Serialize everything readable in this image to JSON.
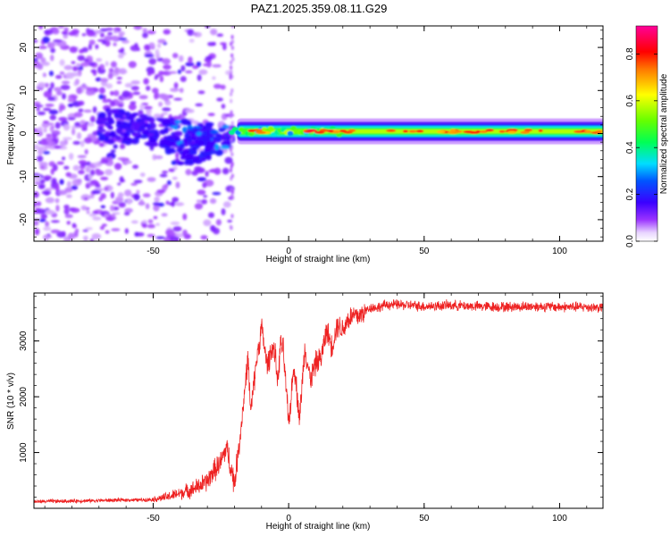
{
  "title": "PAZ1.2025.359.08.11.G29",
  "chart_data": [
    {
      "type": "heatmap",
      "title": "PAZ1.2025.359.08.11.G29",
      "xlabel": "Height of straight line (km)",
      "ylabel": "Frequency (Hz)",
      "xlim": [
        -94,
        116
      ],
      "ylim": [
        -25,
        25
      ],
      "xticks": [
        -50,
        0,
        50,
        100
      ],
      "yticks": [
        -20,
        -10,
        0,
        10,
        20
      ],
      "colorbar": {
        "label": "Normalized spectral amplitude",
        "range": [
          0.0,
          0.92
        ],
        "ticks": [
          "0.0",
          "0.2",
          "0.4",
          "0.6",
          "0.8"
        ],
        "colormap": "rainbow: white -> purple -> blue -> cyan -> green -> yellow -> orange -> red -> magenta"
      },
      "features": [
        {
          "name": "scattered low-amplitude noise",
          "x_range": [
            -94,
            -21
          ],
          "freq_range": [
            -25,
            25
          ],
          "amplitude": 0.05
        },
        {
          "name": "wide dispersed signal",
          "x_range": [
            -70,
            -21
          ],
          "freq_range": [
            -8,
            6
          ],
          "amplitude": 0.15
        },
        {
          "name": "narrow carrier band",
          "x_range": [
            -21,
            116
          ],
          "freq_center": 0.5,
          "freq_halfwidth": 1.5,
          "amplitude": 0.9
        }
      ]
    },
    {
      "type": "line",
      "xlabel": "Height of straight line (km)",
      "ylabel": "SNR (10 * v/v)",
      "xlim": [
        -94,
        116
      ],
      "ylim": [
        0,
        3860
      ],
      "xticks": [
        -50,
        0,
        50,
        100
      ],
      "yticks": [
        1000,
        2000,
        3000
      ],
      "color": "#ee2222",
      "series": [
        {
          "name": "SNR",
          "x": [
            -94,
            -80,
            -70,
            -60,
            -55,
            -50,
            -45,
            -40,
            -35,
            -30,
            -28,
            -25,
            -23,
            -20,
            -18,
            -15,
            -14,
            -12,
            -10,
            -8,
            -6,
            -5,
            -4,
            -3,
            -2,
            0,
            2,
            4,
            6,
            8,
            10,
            12,
            14,
            16,
            18,
            20,
            22,
            24,
            26,
            28,
            30,
            33,
            36,
            40,
            45,
            50,
            60,
            70,
            80,
            90,
            100,
            110,
            116
          ],
          "y": [
            120,
            130,
            140,
            150,
            150,
            160,
            200,
            270,
            350,
            480,
            650,
            820,
            1100,
            450,
            1250,
            2700,
            1700,
            2600,
            3250,
            2550,
            2900,
            2750,
            2250,
            2950,
            2850,
            1500,
            2600,
            1600,
            2900,
            2300,
            2600,
            2700,
            3200,
            2900,
            3300,
            3200,
            3400,
            3450,
            3450,
            3520,
            3600,
            3600,
            3650,
            3650,
            3640,
            3620,
            3640,
            3620,
            3610,
            3620,
            3610,
            3610,
            3600
          ],
          "noise_amplitude": 80
        }
      ]
    }
  ]
}
